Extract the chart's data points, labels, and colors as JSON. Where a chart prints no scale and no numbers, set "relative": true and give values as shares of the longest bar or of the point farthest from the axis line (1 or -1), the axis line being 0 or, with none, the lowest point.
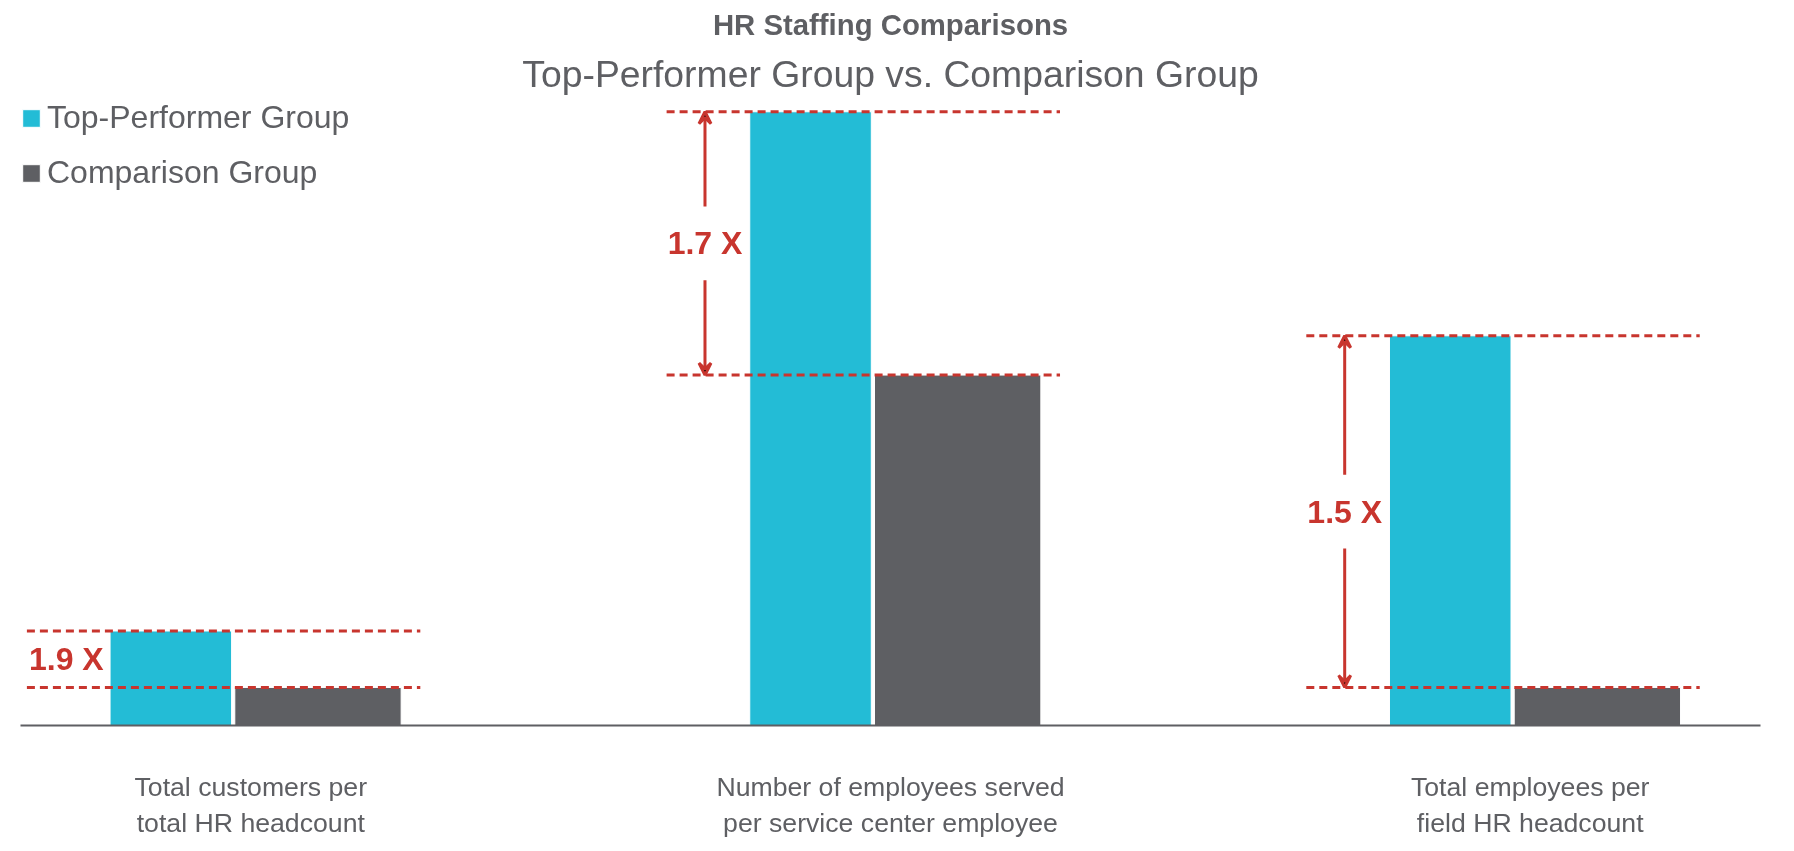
{
  "chart_data": {
    "type": "bar",
    "title": "HR Staffing Comparisons",
    "subtitle": "Top-Performer Group vs. Comparison Group",
    "relative": true,
    "categories": [
      "Total customers per\ntotal HR headcount",
      "Number of employees served\nper service center employee",
      "Total employees per\nfield HR headcount"
    ],
    "series": [
      {
        "name": "Top-Performer Group",
        "color": "#23bcd6",
        "values": [
          0.154,
          1.0,
          0.635
        ]
      },
      {
        "name": "Comparison Group",
        "color": "#5e5f63",
        "values": [
          0.062,
          0.571,
          0.062
        ]
      }
    ],
    "legend": "top left",
    "ref_lines": [
      {
        "axis": "y",
        "value": 0.154,
        "color": "#c8352e",
        "line_style": "dashed"
      },
      {
        "axis": "y",
        "value": 0.062,
        "color": "#c8352e",
        "line_style": "dashed"
      },
      {
        "axis": "y",
        "value": 1.0,
        "color": "#c8352e",
        "line_style": "dashed"
      },
      {
        "axis": "y",
        "value": 0.571,
        "color": "#c8352e",
        "line_style": "dashed"
      },
      {
        "axis": "y",
        "value": 0.635,
        "color": "#c8352e",
        "line_style": "dashed"
      }
    ],
    "annotations": [
      "1.9 X",
      "1.7 X",
      "1.5 X"
    ]
  }
}
